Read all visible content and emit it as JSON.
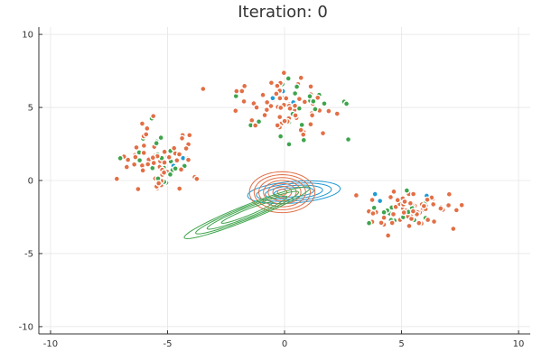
{
  "chart_data": {
    "type": "scatter",
    "title": "Iteration: 0",
    "xlabel": "",
    "ylabel": "",
    "xlim": [
      -10.5,
      10.5
    ],
    "ylim": [
      -10.5,
      10.5
    ],
    "x_ticks": [
      -10,
      -5,
      0,
      5,
      10
    ],
    "x_tick_labels": [
      "-10",
      "-5",
      "0",
      "5",
      "10"
    ],
    "y_ticks": [
      -10,
      -5,
      0,
      5,
      10
    ],
    "y_tick_labels": [
      "-10",
      "-5",
      "0",
      "5",
      "10"
    ],
    "grid": true,
    "legend": "none",
    "colors": {
      "blue": "#1f9ad6",
      "orange": "#e26f46",
      "green": "#3ea44c"
    },
    "clusters": [
      {
        "center": [
          -5.2,
          1.5
        ],
        "spread": [
          0.75,
          1.1
        ]
      },
      {
        "center": [
          0.0,
          5.0
        ],
        "spread": [
          1.0,
          1.1
        ]
      },
      {
        "center": [
          5.3,
          -1.9
        ],
        "spread": [
          0.85,
          0.55
        ]
      }
    ],
    "gaussians": [
      {
        "color_key": "blue",
        "mean": [
          0.4,
          -0.8
        ],
        "sx": 1.9,
        "sy": 0.7,
        "angle_deg": 8,
        "scales": [
          0.45,
          0.65,
          0.85,
          1.05
        ]
      },
      {
        "color_key": "orange",
        "mean": [
          -0.1,
          -0.8
        ],
        "sx": 1.0,
        "sy": 1.0,
        "angle_deg": 55,
        "scales": [
          0.2,
          0.4,
          0.6,
          0.8,
          1.0,
          1.2,
          1.4
        ]
      },
      {
        "color_key": "green",
        "mean": [
          -1.6,
          -2.2
        ],
        "sx": 2.9,
        "sy": 0.42,
        "angle_deg": 33,
        "scales": [
          0.45,
          0.7,
          0.9,
          1.1
        ]
      }
    ]
  }
}
